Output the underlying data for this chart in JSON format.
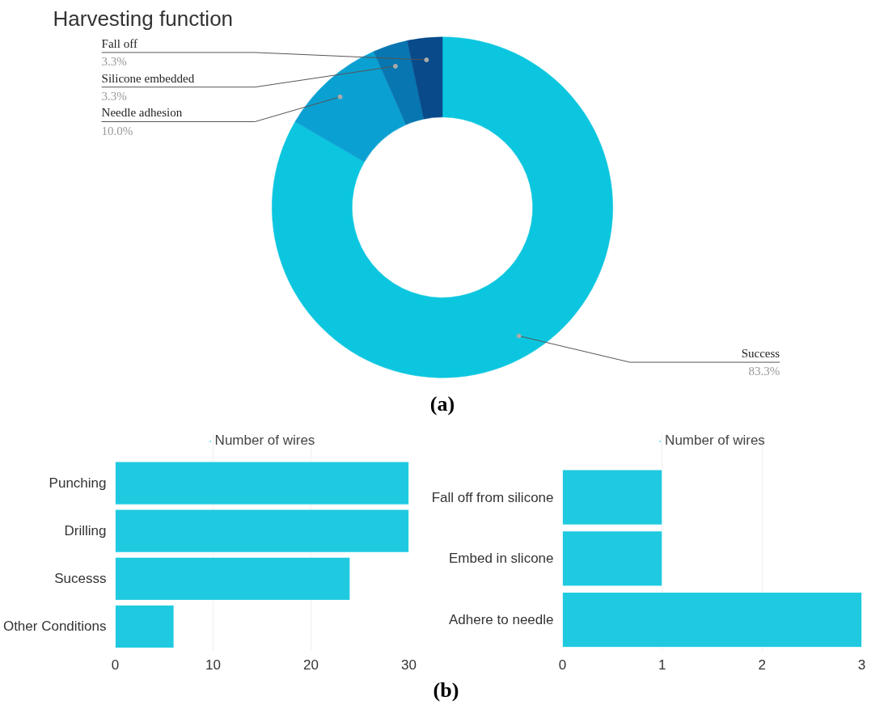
{
  "chart_data": [
    {
      "type": "donut",
      "title": "Harvesting function",
      "categories": [
        "Success",
        "Needle adhesion",
        "Silicone embedded",
        "Fall off"
      ],
      "values": [
        83.3,
        10.0,
        3.3,
        3.3
      ],
      "value_labels": [
        "83.3%",
        "10.0%",
        "3.3%",
        "3.3%"
      ],
      "colors": [
        "#0cc6df",
        "#0ba0d2",
        "#0877b1",
        "#084a8a"
      ],
      "annotations": [
        "(a)"
      ]
    },
    {
      "type": "bar",
      "orientation": "horizontal",
      "categories": [
        "Punching",
        "Drilling",
        "Sucesss",
        "Other Conditions"
      ],
      "series": [
        {
          "name": "Number of wires",
          "color": "#1fcae0",
          "values": [
            30,
            30,
            24,
            6
          ]
        }
      ],
      "xlim": [
        0,
        30
      ],
      "xticks": [
        0,
        10,
        20,
        30
      ],
      "grid": "x",
      "legend": "top",
      "annotations": [
        "(b)"
      ]
    },
    {
      "type": "bar",
      "orientation": "horizontal",
      "categories": [
        "Fall off from silicone",
        "Embed in slicone",
        "Adhere to needle"
      ],
      "series": [
        {
          "name": "Number of wires",
          "color": "#1fcae0",
          "values": [
            1,
            1,
            3
          ]
        }
      ],
      "xlim": [
        0,
        3
      ],
      "xticks": [
        0,
        1,
        2,
        3
      ],
      "grid": "x",
      "legend": "top"
    }
  ]
}
